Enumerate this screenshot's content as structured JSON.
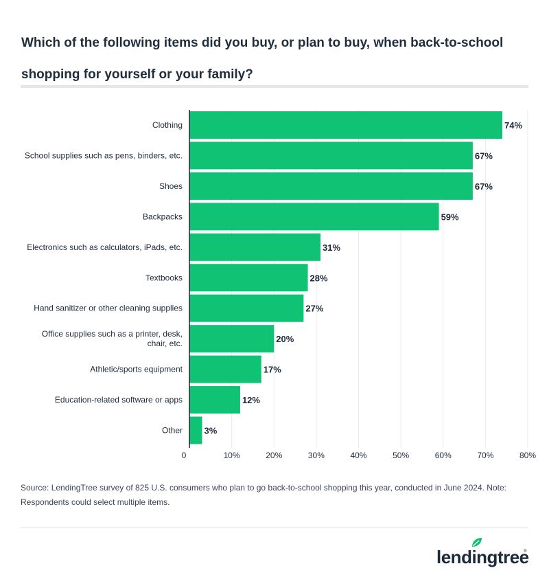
{
  "title": "Which of the following items did you buy, or plan to buy, when back-to-school shopping for yourself or your family?",
  "source": "Source: LendingTree survey of 825 U.S. consumers who plan to go back-to-school shopping this year, conducted in June 2024. Note: Respondents could select multiple items.",
  "logo_text": "lendingtree",
  "colors": {
    "bar": "#0fc274",
    "accent": "#0fc274",
    "text": "#1d2a3a"
  },
  "chart_data": {
    "type": "bar",
    "orientation": "horizontal",
    "categories": [
      "Clothing",
      "School supplies such as pens, binders, etc.",
      "Shoes",
      "Backpacks",
      "Electronics such as calculators, iPads, etc.",
      "Textbooks",
      "Hand sanitizer or other cleaning supplies",
      "Office supplies such as a printer, desk, chair, etc.",
      "Athletic/sports equipment",
      "Education-related software or apps",
      "Other"
    ],
    "values": [
      74,
      67,
      67,
      59,
      31,
      28,
      27,
      20,
      17,
      12,
      3
    ],
    "value_labels": [
      "74%",
      "67%",
      "67%",
      "59%",
      "31%",
      "28%",
      "27%",
      "20%",
      "17%",
      "12%",
      "3%"
    ],
    "xlim": [
      0,
      80
    ],
    "x_ticks": [
      0,
      10,
      20,
      30,
      40,
      50,
      60,
      70,
      80
    ],
    "x_tick_labels": [
      "0",
      "10%",
      "20%",
      "30%",
      "40%",
      "50%",
      "60%",
      "70%",
      "80%"
    ],
    "grid": true
  }
}
